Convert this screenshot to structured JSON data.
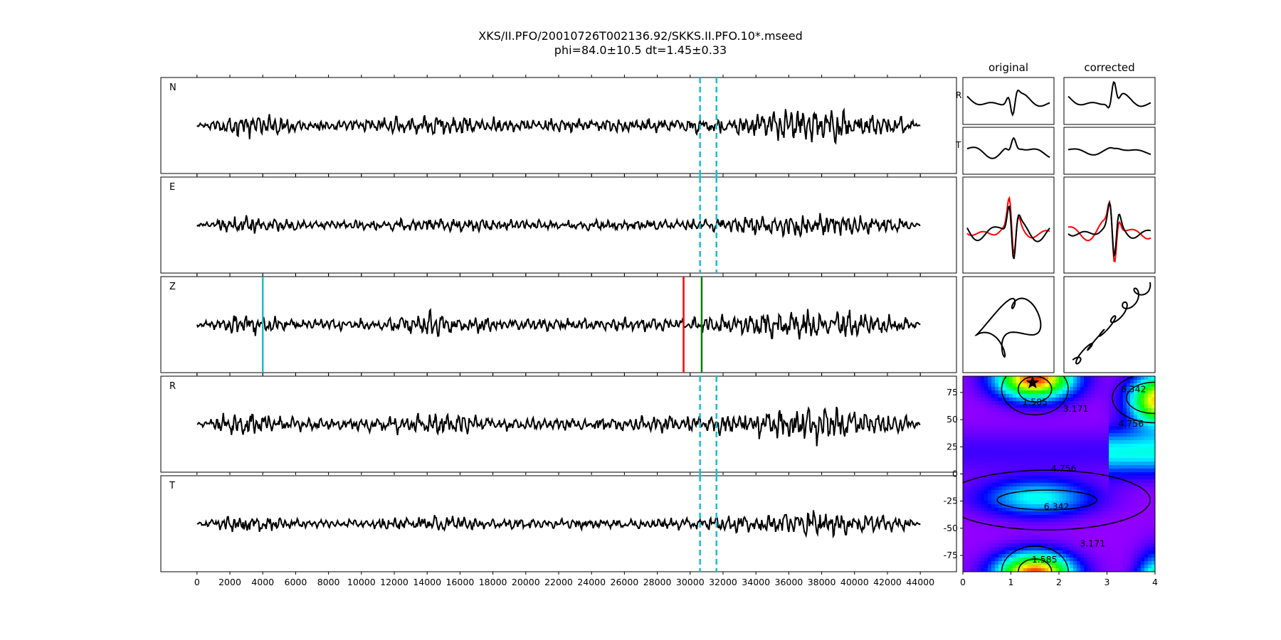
{
  "figure": {
    "title_line1": "XKS/II.PFO/20010726T002136.92/SKKS.II.PFO.10*.mseed",
    "title_line2": "phi=84.0±10.5 dt=1.45±0.33"
  },
  "chart_data": [
    {
      "type": "line",
      "name": "seismogram-traces",
      "panels": [
        "N",
        "E",
        "Z",
        "R",
        "T"
      ],
      "xlim": [
        -2200,
        46200
      ],
      "xticks": [
        0,
        2000,
        4000,
        6000,
        8000,
        10000,
        12000,
        14000,
        16000,
        18000,
        20000,
        22000,
        24000,
        26000,
        28000,
        30000,
        32000,
        34000,
        36000,
        38000,
        40000,
        42000,
        44000
      ],
      "trace_range": [
        0,
        44000
      ],
      "window_lines": {
        "values": [
          30600,
          31600
        ],
        "panels": [
          "N",
          "E",
          "R",
          "T"
        ],
        "color": "#17becf",
        "style": "dashed"
      },
      "picks": [
        {
          "panel": "Z",
          "x": 4000,
          "color": "#17becf"
        },
        {
          "panel": "Z",
          "x": 29600,
          "color": "#ff0000"
        },
        {
          "panel": "Z",
          "x": 30700,
          "color": "#008000"
        }
      ]
    },
    {
      "type": "line",
      "name": "component-insets",
      "columns": [
        "original",
        "corrected"
      ],
      "rows": [
        "R",
        "T",
        "overlay",
        "particle-motion"
      ],
      "overlay_colors": [
        "#ff0000",
        "#000000"
      ]
    },
    {
      "type": "heatmap",
      "name": "error-surface",
      "xlim": [
        0,
        4
      ],
      "ylim": [
        -90,
        90
      ],
      "xticks": [
        0,
        1,
        2,
        3,
        4
      ],
      "yticks": [
        -75,
        -50,
        -25,
        0,
        25,
        50,
        75
      ],
      "colormap": "gist_rainbow",
      "contour_levels": [
        1.585,
        3.171,
        4.756,
        6.342
      ],
      "marker": {
        "x": 1.45,
        "y": 84.0,
        "shape": "star"
      }
    }
  ]
}
